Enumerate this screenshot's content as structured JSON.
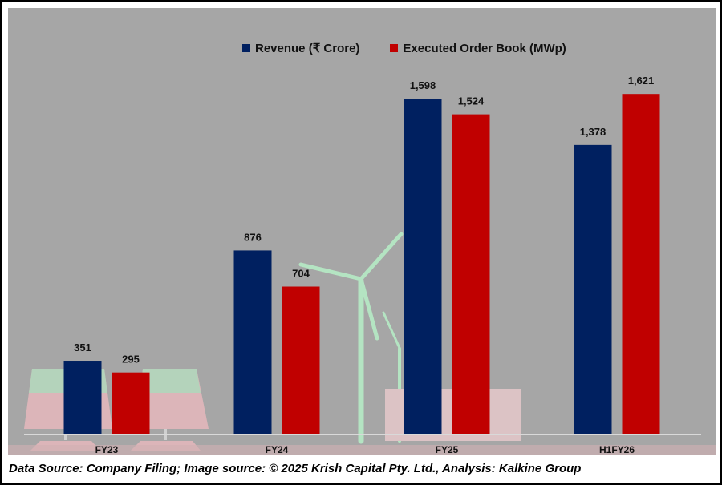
{
  "chart_data": {
    "type": "bar",
    "title": "",
    "categories": [
      "FY23",
      "FY24",
      "FY25",
      "H1FY26"
    ],
    "series": [
      {
        "name": "Revenue (₹ Crore)",
        "color": "#002060",
        "values": [
          351,
          876,
          1598,
          1378
        ],
        "labels": [
          "351",
          "876",
          "1,598",
          "1,378"
        ]
      },
      {
        "name": "Executed Order Book (MWp)",
        "color": "#c00000",
        "values": [
          295,
          704,
          1524,
          1621
        ],
        "labels": [
          "295",
          "704",
          "1,524",
          "1,621"
        ]
      }
    ],
    "xlabel": "",
    "ylabel": "",
    "ylim": [
      0,
      2030
    ],
    "grid": false,
    "legend_position": "top-center"
  },
  "footer": "Data Source: Company Filing; Image source: © 2025 Krish Capital Pty. Ltd., Analysis: Kalkine Group"
}
